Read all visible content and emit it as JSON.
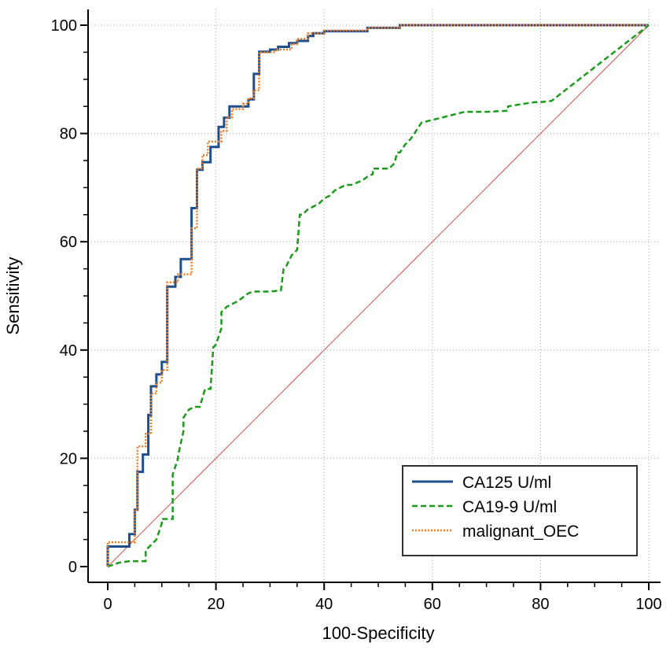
{
  "chart_data": {
    "type": "line",
    "title": "",
    "xlabel": "100-Specificity",
    "ylabel": "Sensitivity",
    "xlim": [
      0,
      100
    ],
    "ylim": [
      0,
      100
    ],
    "xticks": [
      0,
      20,
      40,
      60,
      80,
      100
    ],
    "yticks": [
      0,
      20,
      40,
      60,
      80,
      100
    ],
    "grid": true,
    "legend_position": "bottom-right",
    "reference_line": {
      "x": [
        0,
        100
      ],
      "y": [
        0,
        100
      ],
      "color": "#d9534f"
    },
    "series": [
      {
        "name": "CA125 U/ml",
        "color": "#1f4e8c",
        "style": "solid",
        "x": [
          0,
          0,
          4,
          4,
          5,
          5,
          5.5,
          5.5,
          6.5,
          6.5,
          7.5,
          7.5,
          8,
          8,
          9,
          9,
          10,
          10,
          11,
          11,
          12.5,
          12.5,
          13.5,
          13.5,
          15.5,
          15.5,
          16.5,
          16.5,
          17.5,
          17.5,
          19,
          19,
          20.5,
          20.5,
          21.5,
          21.5,
          22.5,
          22.5,
          26,
          26,
          27,
          27,
          28,
          28,
          30,
          30,
          31.5,
          31.5,
          33.5,
          33.5,
          35,
          35,
          37,
          37,
          38,
          38,
          40,
          40,
          48,
          48,
          54,
          54,
          100
        ],
        "y": [
          0,
          3.7,
          3.7,
          6,
          6,
          10.5,
          10.5,
          17.5,
          17.5,
          20.7,
          20.7,
          28,
          28,
          33.3,
          33.3,
          35.5,
          35.5,
          37.8,
          37.8,
          51.7,
          51.7,
          53.5,
          53.5,
          56.8,
          56.8,
          66.2,
          66.2,
          73.3,
          73.3,
          74.7,
          74.7,
          77.5,
          77.5,
          81.2,
          81.2,
          82.9,
          82.9,
          85,
          85,
          86.3,
          86.3,
          91,
          91,
          95.1,
          95.1,
          95.5,
          95.5,
          96,
          96,
          96.7,
          96.7,
          97.1,
          97.1,
          98,
          98,
          98.5,
          98.5,
          98.9,
          98.9,
          99.5,
          99.5,
          100,
          100
        ]
      },
      {
        "name": "CA19-9 U/ml",
        "color": "#1a9c1a",
        "style": "dashed",
        "x": [
          0,
          2,
          4,
          5,
          7,
          7,
          9,
          10,
          10,
          12,
          12,
          13,
          13,
          14,
          14,
          15,
          16,
          17,
          18,
          19,
          19.5,
          20,
          21,
          21,
          22,
          23,
          24,
          26,
          27,
          30,
          32,
          32.5,
          33,
          34,
          35,
          35.5,
          36,
          36.5,
          37,
          39,
          40,
          41,
          42,
          43,
          44,
          45,
          47,
          48,
          49,
          49,
          52,
          53,
          53.5,
          54,
          55,
          56,
          57,
          58,
          60,
          62,
          64,
          66,
          68,
          70,
          74,
          74,
          77,
          79,
          80,
          82,
          100
        ],
        "y": [
          0,
          0.7,
          1,
          1,
          1,
          3,
          5,
          8,
          8.8,
          8.8,
          17,
          20,
          20.5,
          25,
          27.5,
          29,
          29.5,
          29.5,
          32.8,
          32.8,
          40.5,
          41,
          44,
          47,
          48,
          48.5,
          49,
          50.5,
          50.8,
          50.8,
          51,
          55,
          55.5,
          57.5,
          58.5,
          65,
          65,
          65.5,
          66,
          67,
          68,
          68.5,
          69.5,
          70,
          70.5,
          70.5,
          71.3,
          72,
          72.5,
          73.5,
          73.5,
          74.5,
          76.5,
          76.5,
          78,
          79,
          80.5,
          82,
          82.5,
          83,
          83.5,
          84,
          84,
          84,
          84.2,
          85,
          85.5,
          85.8,
          85.8,
          86,
          100
        ]
      },
      {
        "name": "malignant_OEC",
        "color": "#f07b22",
        "style": "dotted",
        "x": [
          0,
          0,
          5,
          5,
          5.5,
          5.5,
          7,
          7,
          8,
          8,
          9,
          9,
          10,
          10,
          11,
          11,
          13,
          13,
          15.5,
          15.5,
          16.5,
          16.5,
          17.5,
          17.5,
          18.5,
          18.5,
          21,
          21,
          22,
          22,
          23,
          23,
          25,
          25,
          26,
          26,
          27,
          27,
          28,
          28,
          31,
          31,
          34,
          34,
          35,
          35,
          37,
          37,
          40,
          40,
          48,
          48,
          54,
          54,
          100
        ],
        "y": [
          0,
          4.5,
          4.5,
          10.5,
          10.5,
          22.2,
          22.2,
          24.5,
          24.5,
          32,
          32,
          34,
          34,
          36.3,
          36.3,
          52.5,
          52.5,
          54,
          54,
          62.5,
          62.5,
          73.5,
          73.5,
          76,
          76,
          78.5,
          78.5,
          80.5,
          80.5,
          83,
          83,
          84.5,
          84.5,
          85.5,
          85.5,
          86.5,
          86.5,
          88,
          88,
          95,
          95,
          95.5,
          95.5,
          96.5,
          96.5,
          97.5,
          97.5,
          98.5,
          98.5,
          99,
          99,
          99.5,
          99.5,
          100,
          100
        ]
      }
    ]
  }
}
